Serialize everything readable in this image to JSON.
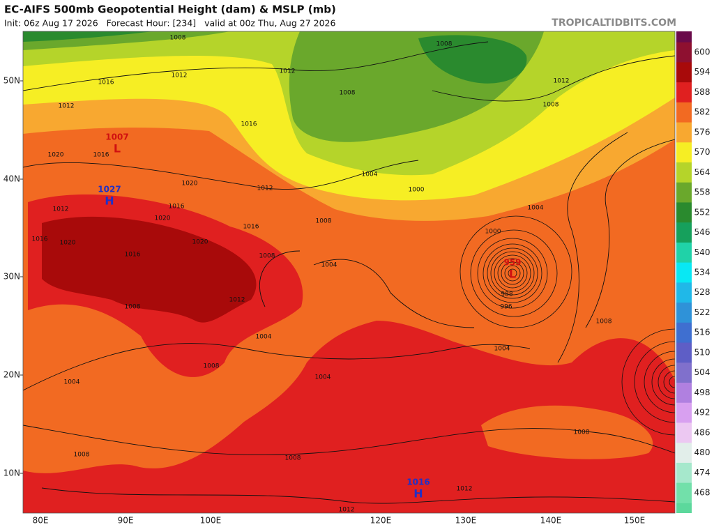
{
  "header": {
    "title": "EC-AIFS 500mb Geopotential Height (dam) & MSLP (mb)",
    "init": "Init: 06z Aug 17 2026   Forecast Hour: [234]   valid at 00z Thu, Aug 27 2026",
    "watermark": "TROPICALTIDBITS.COM"
  },
  "map": {
    "lat_labels": [
      "50N",
      "40N",
      "30N",
      "20N",
      "10N"
    ],
    "lon_labels": [
      "80E",
      "90E",
      "100E",
      "120E",
      "130E",
      "140E",
      "150E"
    ],
    "pressure_centers": [
      {
        "letter": "H",
        "value": "1027"
      },
      {
        "letter": "H",
        "value": "1016"
      },
      {
        "letter": "L",
        "value": "959"
      },
      {
        "letter": "L",
        "value": "1007"
      }
    ],
    "contour_labels": [
      "1008",
      "1012",
      "1016",
      "1012",
      "1012",
      "1008",
      "1008",
      "1012",
      "1008",
      "1016",
      "1020",
      "1016",
      "1020",
      "1012",
      "1004",
      "1000",
      "1004",
      "1012",
      "1016",
      "1020",
      "1008",
      "1016",
      "1000",
      "1016",
      "1020",
      "1020",
      "1016",
      "1008",
      "1004",
      "988",
      "996",
      "1008",
      "1012",
      "1004",
      "1008",
      "1004",
      "1008",
      "1004",
      "1004",
      "1008",
      "1008",
      "1008",
      "1012",
      "1012"
    ]
  },
  "colorbar": {
    "levels": [
      600,
      594,
      588,
      582,
      576,
      570,
      564,
      558,
      552,
      546,
      540,
      534,
      528,
      522,
      516,
      510,
      504,
      498,
      492,
      486,
      480,
      474,
      468
    ],
    "colors": [
      "#8e1030",
      "#a80a0a",
      "#e02020",
      "#f26a22",
      "#f8a830",
      "#f6ee24",
      "#b5d42a",
      "#6aa82c",
      "#2a8a2e",
      "#16a05c",
      "#20d2a8",
      "#08e8f4",
      "#20b8e8",
      "#2f92d8",
      "#3f6fd0",
      "#5e5ec6",
      "#8070cc",
      "#b080e0",
      "#d8a0f0",
      "#ecc8f2",
      "#e2eeea",
      "#a6e8cc",
      "#72e0aa"
    ]
  }
}
